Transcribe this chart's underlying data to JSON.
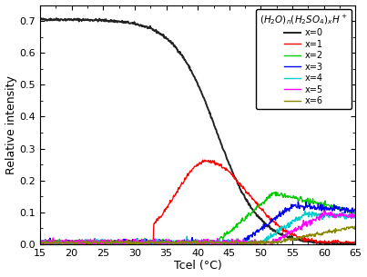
{
  "xlabel": "Tcel (°C)",
  "ylabel": "Relative intensity",
  "xlim": [
    15,
    65
  ],
  "ylim": [
    0.0,
    0.75
  ],
  "yticks": [
    0.0,
    0.1,
    0.2,
    0.3,
    0.4,
    0.5,
    0.6,
    0.7
  ],
  "xticks": [
    15,
    20,
    25,
    30,
    35,
    40,
    45,
    50,
    55,
    60,
    65
  ],
  "legend_title": "$(H_2O)_n(H_2SO_4)_xH^+$",
  "series": [
    {
      "label": "x=0",
      "color": "#222222",
      "lw": 1.4
    },
    {
      "label": "x=1",
      "color": "#ff0000",
      "lw": 1.0
    },
    {
      "label": "x=2",
      "color": "#00cc00",
      "lw": 1.0
    },
    {
      "label": "x=3",
      "color": "#0000ee",
      "lw": 1.0
    },
    {
      "label": "x=4",
      "color": "#00cccc",
      "lw": 1.0
    },
    {
      "label": "x=5",
      "color": "#ff00ff",
      "lw": 1.0
    },
    {
      "label": "x=6",
      "color": "#888800",
      "lw": 1.0
    }
  ]
}
